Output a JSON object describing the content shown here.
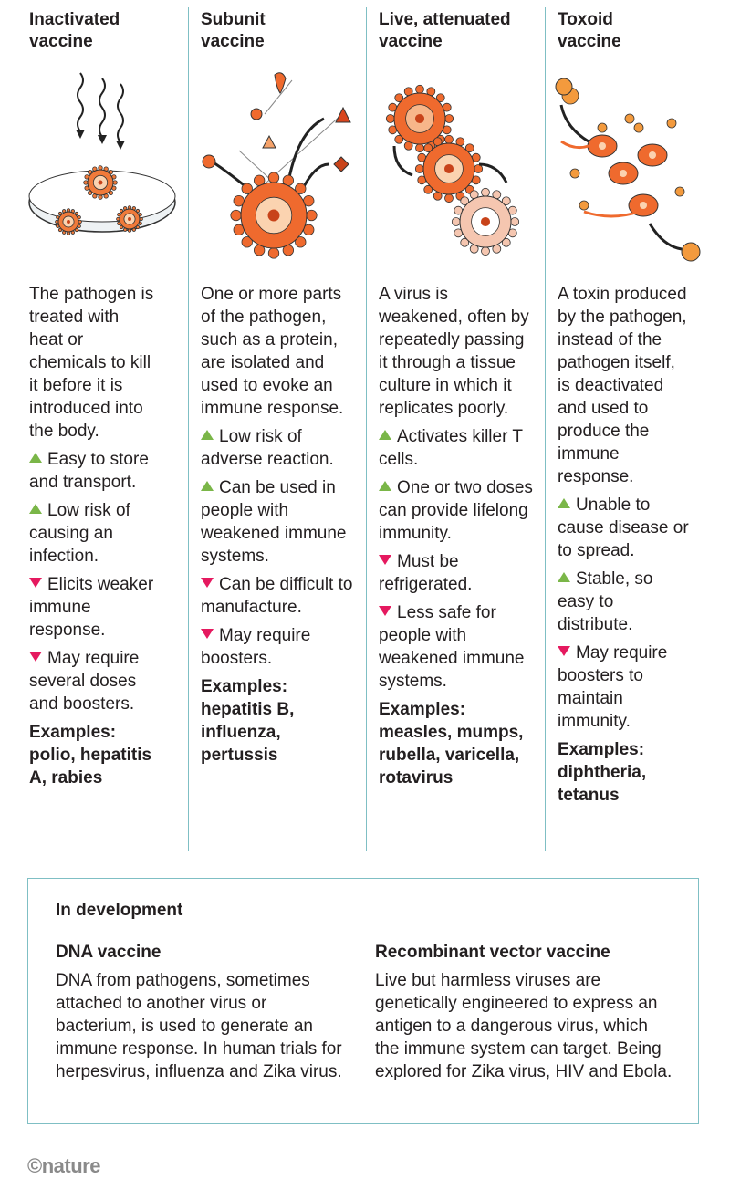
{
  "columns": [
    {
      "title": "Inactivated vaccine",
      "description": "The pathogen is treated with heat or chemicals to kill it before it is introduced into the body.",
      "pros": [
        "Easy to store and transport.",
        "Low risk of causing an infection."
      ],
      "cons": [
        "Elicits weaker immune response.",
        "May require several doses and boosters."
      ],
      "examples_label": "Examples:",
      "examples": "polio, hepatitis A, rabies"
    },
    {
      "title": "Subunit vaccine",
      "description": "One or more parts of the pathogen, such as a protein, are isolated and used to evoke an immune response.",
      "pros": [
        "Low risk of adverse reaction.",
        "Can be used in people with weakened immune systems."
      ],
      "cons": [
        "Can be difficult to manufacture.",
        "May require boosters."
      ],
      "examples_label": "Examples:",
      "examples": "hepatitis B, influenza, pertussis"
    },
    {
      "title": "Live, attenuated vaccine",
      "description": "A virus is weakened, often by repeatedly passing it through a tissue culture in which it replicates poorly.",
      "pros": [
        "Activates killer T cells.",
        "One or two doses can provide lifelong immunity."
      ],
      "cons": [
        "Must be refrigerated.",
        "Less safe for people with weakened immune systems."
      ],
      "examples_label": "Examples:",
      "examples": "measles, mumps, rubella, varicella, rotavirus"
    },
    {
      "title": "Toxoid vaccine",
      "description": "A toxin produced by the pathogen, instead of the pathogen itself, is deactivated and used to produce the immune response.",
      "pros": [
        "Unable to cause disease or to spread.",
        "Stable, so easy to distribute."
      ],
      "cons": [
        "May require boosters to maintain immunity."
      ],
      "examples_label": "Examples:",
      "examples": "diphtheria, tetanus"
    }
  ],
  "development": {
    "title": "In development",
    "items": [
      {
        "title": "DNA vaccine",
        "text": "DNA from pathogens, sometimes attached to another virus or bacterium, is used to generate an immune response. In human trials for herpesvirus, influenza and Zika virus."
      },
      {
        "title": "Recombinant vector vaccine",
        "text": "Live but harmless viruses are genetically engineered to express an antigen to a dangerous virus, which the immune system can target. Being explored for Zika virus, HIV and Ebola."
      }
    ]
  },
  "footer": "©nature"
}
